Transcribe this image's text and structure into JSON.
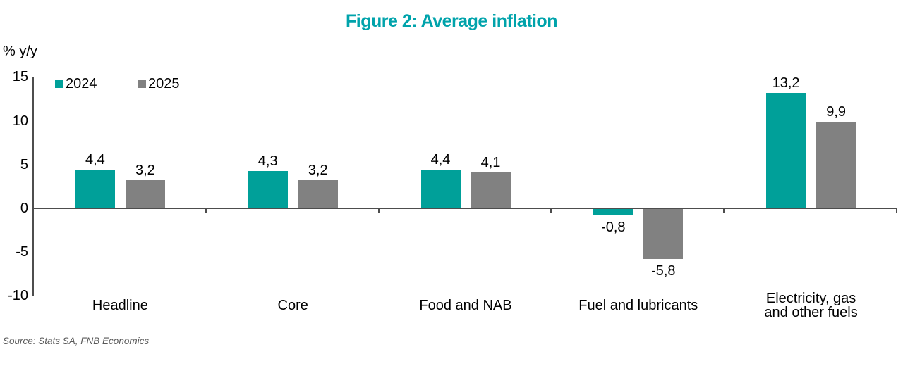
{
  "title": "Figure 2: Average inflation",
  "ylabel": "% y/y",
  "source": "Source: Stats SA, FNB Economics",
  "colors": {
    "title": "#00A3AB",
    "axis": "#4D4D4D",
    "source_text": "#595959",
    "series_2024": "#00A099",
    "series_2025": "#818181"
  },
  "chart_data": {
    "type": "bar",
    "title": "Figure 2: Average inflation",
    "ylabel": "% y/y",
    "categories": [
      "Headline",
      "Core",
      "Food and NAB",
      "Fuel and lubricants",
      "Electricity, gas\nand other fuels"
    ],
    "series": [
      {
        "name": "2024",
        "color": "#00A099",
        "values": [
          4.4,
          4.3,
          4.4,
          -0.8,
          13.2
        ],
        "labels": [
          "4,4",
          "4,3",
          "4,4",
          "-0,8",
          "13,2"
        ]
      },
      {
        "name": "2025",
        "color": "#818181",
        "values": [
          3.2,
          3.2,
          4.1,
          -5.8,
          9.9
        ],
        "labels": [
          "3,2",
          "3,2",
          "4,1",
          "-5,8",
          "9,9"
        ]
      }
    ],
    "y_axis": {
      "min": -10,
      "max": 15,
      "ticks": [
        15,
        10,
        5,
        0,
        -5,
        -10
      ]
    },
    "decimal_separator": ",",
    "legend_position": "top-left",
    "grid": false
  }
}
